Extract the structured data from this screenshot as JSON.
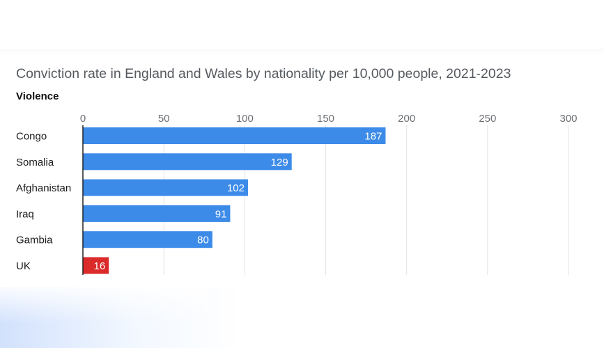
{
  "chart_data": {
    "type": "bar",
    "orientation": "horizontal",
    "title": "Conviction rate in England and Wales by nationality per 10,000 people, 2021-2023",
    "subtitle": "Violence",
    "categories": [
      "Congo",
      "Somalia",
      "Afghanistan",
      "Iraq",
      "Gambia",
      "UK"
    ],
    "values": [
      187,
      129,
      102,
      91,
      80,
      16
    ],
    "value_labels": [
      "187",
      "129",
      "102",
      "91",
      "80",
      "16"
    ],
    "xlim": [
      0,
      300
    ],
    "x_ticks": [
      0,
      50,
      100,
      150,
      200,
      250,
      300
    ],
    "x_tick_labels": [
      "0",
      "50",
      "100",
      "150",
      "200",
      "250",
      "300"
    ],
    "axis_position": "top",
    "grid": true,
    "colors": {
      "default_bar": "#3d8be9",
      "highlight_bar": "#da2a2a",
      "highlight_category": "UK",
      "gridline": "#e3e3e3",
      "axis_line": "#222222"
    }
  }
}
